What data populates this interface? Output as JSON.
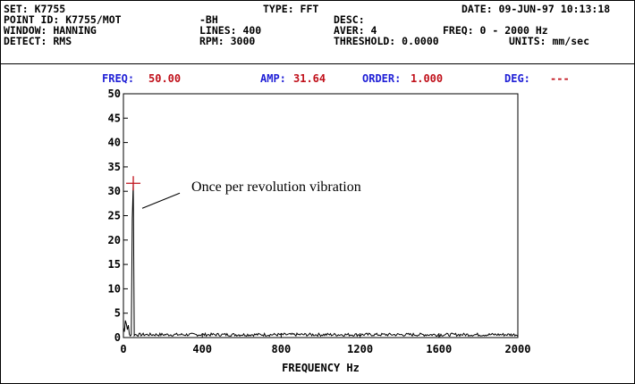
{
  "header": {
    "set": "SET: K7755",
    "type": "TYPE: FFT",
    "date": "DATE: 09-JUN-97 10:13:18",
    "point_id": "POINT ID: K7755/MOT",
    "point_suffix": "-BH",
    "desc": "DESC:",
    "window": "WINDOW: HANNING",
    "lines": "LINES: 400",
    "aver": "AVER: 4",
    "freq_range": "FREQ: 0 - 2000 Hz",
    "detect": "DETECT: RMS",
    "rpm": "RPM: 3000",
    "threshold": "THRESHOLD: 0.0000",
    "units": "UNITS: mm/sec"
  },
  "cursor": {
    "freq_label": "FREQ:",
    "freq_value": "50.00",
    "amp_label": "AMP:",
    "amp_value": "31.64",
    "order_label": "ORDER:",
    "order_value": "1.000",
    "deg_label": "DEG:",
    "deg_value": "---"
  },
  "colors": {
    "label": "#1f1fd6",
    "value": "#c0101a",
    "trace": "#000000",
    "marker": "#c0101a"
  },
  "chart_data": {
    "type": "line",
    "xlabel": "FREQUENCY Hz",
    "ylabel": "",
    "xlim": [
      0,
      2000
    ],
    "ylim": [
      0,
      50
    ],
    "xticks": [
      0,
      400,
      800,
      1200,
      1600,
      2000
    ],
    "yticks": [
      0,
      5,
      10,
      15,
      20,
      25,
      30,
      35,
      40,
      45,
      50
    ],
    "grid": false,
    "peaks": [
      {
        "x": 50,
        "y": 31.64
      },
      {
        "x": 45,
        "y": 24.5
      },
      {
        "x": 10,
        "y": 3.5
      }
    ],
    "noise_floor": 0.7,
    "cursor_marker": {
      "x": 50,
      "y": 31.64
    },
    "annotation": {
      "text": "Once per revolution vibration",
      "x": 50,
      "y": 31.64
    }
  }
}
